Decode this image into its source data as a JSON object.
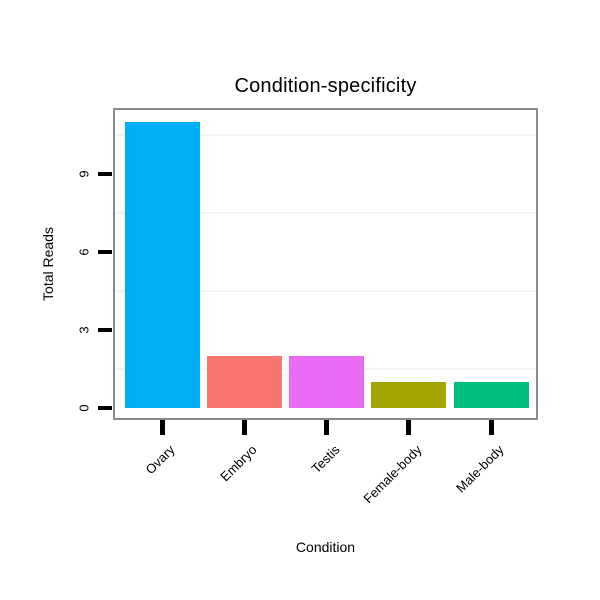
{
  "chart_data": {
    "type": "bar",
    "title": "Condition-specificity",
    "xlabel": "Condition",
    "ylabel": "Total Reads",
    "categories": [
      "Ovary",
      "Embryo",
      "Testis",
      "Female-body",
      "Male-body"
    ],
    "values": [
      11,
      2,
      2,
      1,
      1
    ],
    "bar_colors": [
      "#00B0F6",
      "#F8766D",
      "#E76BF3",
      "#A3A500",
      "#00BF7D"
    ],
    "yticks": [
      0,
      3,
      6,
      9
    ],
    "ylim": [
      0,
      11.65
    ],
    "minor_gridlines": [
      1.5,
      4.5,
      7.5,
      10.5
    ],
    "grid": "minor-horizontal-only",
    "legend": "none",
    "panel_border_color": "#8a8a8a",
    "minor_gridline_color": "#f5f5f5",
    "tick_color": "#000000",
    "text_color": "#000000",
    "background_color": "#ffffff",
    "x_label_rotation_deg": 45,
    "y_label_rotation_deg": 90
  }
}
